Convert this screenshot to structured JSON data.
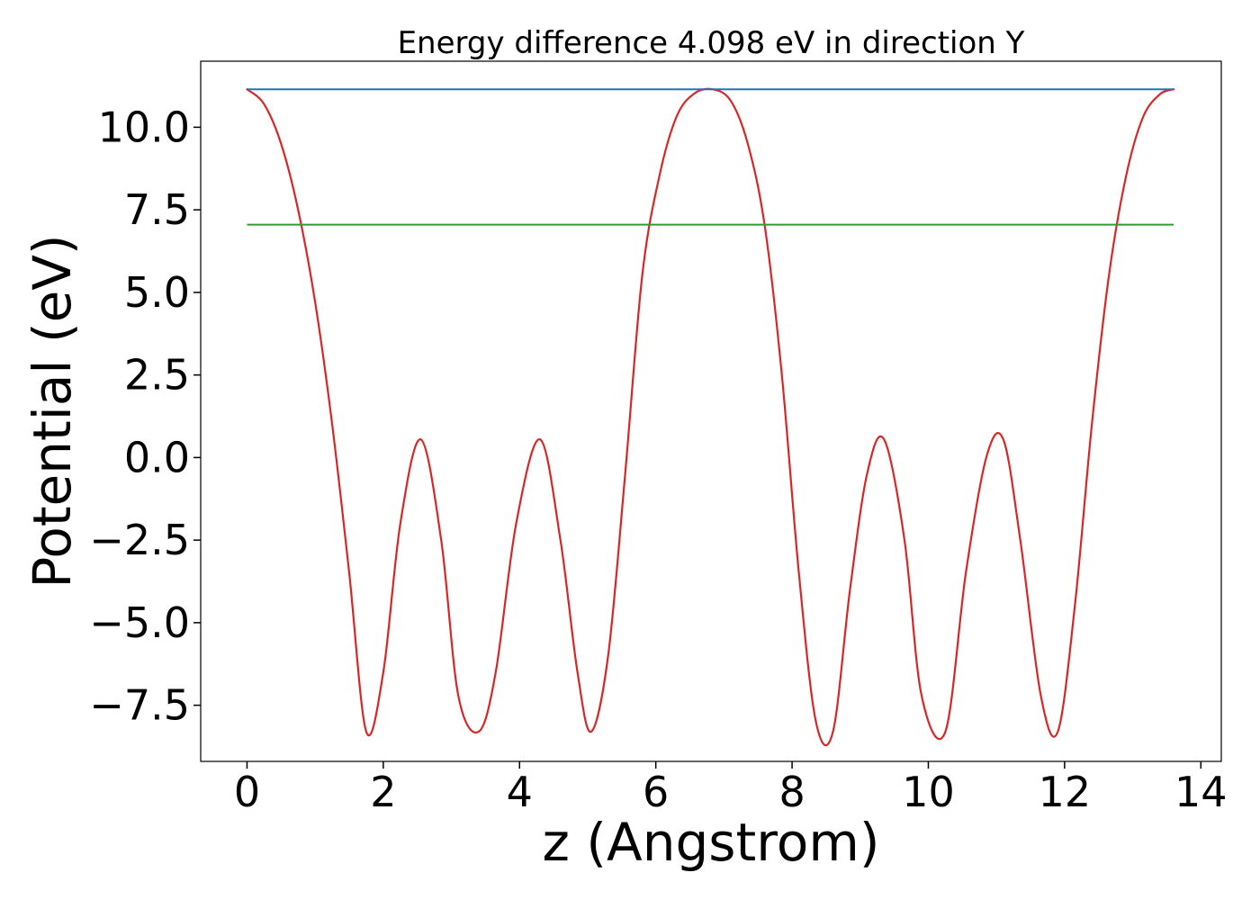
{
  "chart_data": {
    "type": "line",
    "title": "Energy difference 4.098 eV in direction Y",
    "xlabel": "z (Angstrom)",
    "ylabel": "Potential (eV)",
    "xlim": [
      -0.68,
      14.3
    ],
    "ylim": [
      -9.2,
      12.0
    ],
    "xticks": [
      0,
      2,
      4,
      6,
      8,
      10,
      12,
      14
    ],
    "xtick_labels": [
      "0",
      "2",
      "4",
      "6",
      "8",
      "10",
      "12",
      "14"
    ],
    "yticks": [
      10.0,
      7.5,
      5.0,
      2.5,
      0.0,
      -2.5,
      -5.0,
      -7.5
    ],
    "ytick_labels": [
      "10.0",
      "7.5",
      "5.0",
      "2.5",
      "0.0",
      "−2.5",
      "−5.0",
      "−7.5"
    ],
    "grid": false,
    "series": [
      {
        "color": "#d62728",
        "kind": "curve",
        "x": [
          0.0,
          0.25,
          0.5,
          0.75,
          1.0,
          1.25,
          1.5,
          1.75,
          2.0,
          2.25,
          2.55,
          2.85,
          3.1,
          3.4,
          3.65,
          3.95,
          4.3,
          4.6,
          4.85,
          5.05,
          5.3,
          5.55,
          5.8,
          6.05,
          6.3,
          6.55,
          6.83,
          7.1,
          7.35,
          7.6,
          7.85,
          8.1,
          8.35,
          8.6,
          8.85,
          9.1,
          9.35,
          9.65,
          9.9,
          10.25,
          10.55,
          10.85,
          11.1,
          11.35,
          11.65,
          11.9,
          12.15,
          12.4,
          12.65,
          12.9,
          13.15,
          13.4,
          13.6
        ],
        "y": [
          11.15,
          10.7,
          9.5,
          7.5,
          4.7,
          1.0,
          -3.5,
          -8.3,
          -6.5,
          -2.0,
          0.55,
          -2.5,
          -7.2,
          -8.3,
          -6.5,
          -2.0,
          0.55,
          -2.5,
          -6.5,
          -8.3,
          -6.0,
          -0.5,
          5.5,
          8.5,
          10.3,
          11.0,
          11.15,
          10.8,
          9.5,
          7.0,
          2.5,
          -3.5,
          -8.0,
          -8.3,
          -4.0,
          -0.5,
          0.55,
          -2.5,
          -7.2,
          -8.3,
          -3.5,
          0.0,
          0.55,
          -2.5,
          -7.2,
          -8.3,
          -4.5,
          1.0,
          5.5,
          8.5,
          10.3,
          11.0,
          11.15
        ]
      },
      {
        "color": "#1f77b4",
        "kind": "hline",
        "x": [
          0.0,
          13.6
        ],
        "y": [
          11.15,
          11.15
        ]
      },
      {
        "color": "#2ca02c",
        "kind": "hline",
        "x": [
          0.0,
          13.6
        ],
        "y": [
          7.05,
          7.05
        ]
      }
    ]
  }
}
